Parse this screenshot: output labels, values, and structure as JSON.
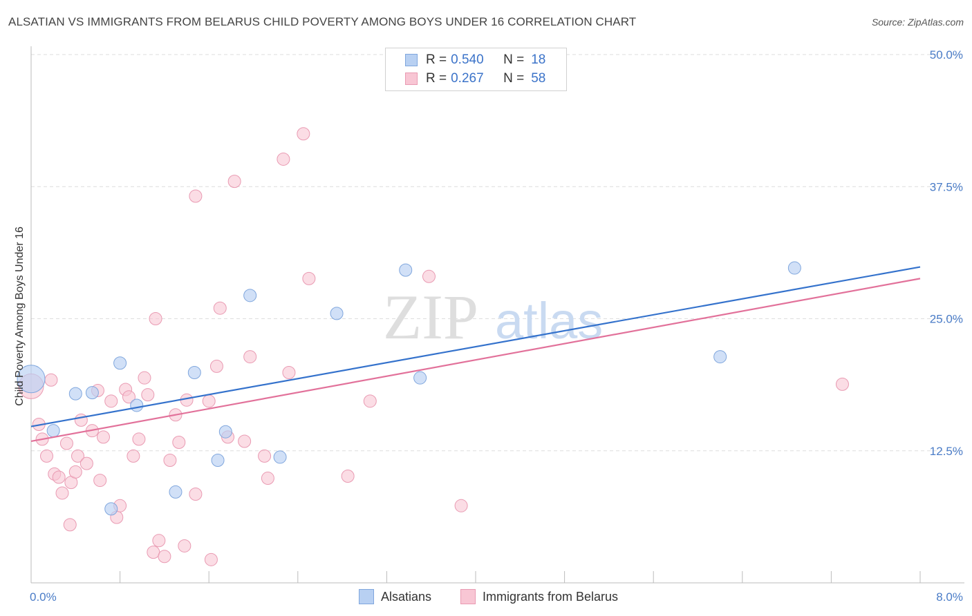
{
  "title": "ALSATIAN VS IMMIGRANTS FROM BELARUS CHILD POVERTY AMONG BOYS UNDER 16 CORRELATION CHART",
  "source": "Source: ZipAtlas.com",
  "watermark": {
    "zip": "ZIP",
    "atlas": "atlas"
  },
  "legend": {
    "rows": [
      {
        "r_label": "R =",
        "r_value": "0.540",
        "n_label": "N =",
        "n_value": "18"
      },
      {
        "r_label": "R =",
        "r_value": "0.267",
        "n_label": "N =",
        "n_value": "58"
      }
    ]
  },
  "bottom_legend": {
    "series1": "Alsatians",
    "series2": "Immigrants from Belarus"
  },
  "colors": {
    "blue_fill": "#b8d0f2",
    "blue_stroke": "#7fa6dd",
    "blue_line": "#3472cc",
    "pink_fill": "#f8c6d4",
    "pink_stroke": "#e99ab2",
    "pink_line": "#e2719a",
    "grid": "#dddddd",
    "tick_text": "#4a7cc7"
  },
  "chart_data": {
    "type": "scatter",
    "title": "ALSATIAN VS IMMIGRANTS FROM BELARUS CHILD POVERTY AMONG BOYS UNDER 16 CORRELATION CHART",
    "xlabel": "",
    "ylabel": "Child Poverty Among Boys Under 16",
    "xlim": [
      0,
      8
    ],
    "ylim": [
      0,
      50
    ],
    "x_tick_labels": [
      "0.0%",
      "8.0%"
    ],
    "y_ticks": [
      12.5,
      25.0,
      37.5,
      50.0
    ],
    "y_tick_labels": [
      "12.5%",
      "25.0%",
      "37.5%",
      "50.0%"
    ],
    "grid": true,
    "legend_position": "top-center",
    "series": [
      {
        "name": "Alsatians",
        "r": 0.54,
        "n": 18,
        "points": [
          [
            0.0,
            19.3,
            "big"
          ],
          [
            0.2,
            14.4
          ],
          [
            0.4,
            17.9
          ],
          [
            0.55,
            18.0
          ],
          [
            0.8,
            20.8
          ],
          [
            0.95,
            16.8
          ],
          [
            0.72,
            7.0
          ],
          [
            1.3,
            8.6
          ],
          [
            1.47,
            19.9
          ],
          [
            1.68,
            11.6
          ],
          [
            1.75,
            14.3
          ],
          [
            1.97,
            27.2
          ],
          [
            2.24,
            11.9
          ],
          [
            2.75,
            25.5
          ],
          [
            3.37,
            29.6
          ],
          [
            3.5,
            19.4
          ],
          [
            6.2,
            21.4
          ],
          [
            6.87,
            29.8
          ]
        ],
        "trend": [
          [
            0,
            14.8
          ],
          [
            8,
            29.9
          ]
        ]
      },
      {
        "name": "Immigrants from Belarus",
        "r": 0.267,
        "n": 58,
        "points": [
          [
            0.0,
            18.6,
            "big"
          ],
          [
            0.07,
            15.0
          ],
          [
            0.1,
            13.6
          ],
          [
            0.14,
            12.0
          ],
          [
            0.18,
            19.2
          ],
          [
            0.21,
            10.3
          ],
          [
            0.25,
            10.0
          ],
          [
            0.28,
            8.5
          ],
          [
            0.32,
            13.2
          ],
          [
            0.36,
            9.5
          ],
          [
            0.4,
            10.5
          ],
          [
            0.42,
            12.0
          ],
          [
            0.45,
            15.4
          ],
          [
            0.5,
            11.3
          ],
          [
            0.55,
            14.4
          ],
          [
            0.6,
            18.2
          ],
          [
            0.62,
            9.7
          ],
          [
            0.65,
            13.8
          ],
          [
            0.72,
            17.2
          ],
          [
            0.77,
            6.2
          ],
          [
            0.8,
            7.3
          ],
          [
            0.85,
            18.3
          ],
          [
            0.88,
            17.6
          ],
          [
            0.92,
            12.0
          ],
          [
            0.97,
            13.6
          ],
          [
            1.02,
            19.4
          ],
          [
            1.05,
            17.8
          ],
          [
            1.12,
            25.0
          ],
          [
            1.1,
            2.9
          ],
          [
            1.2,
            2.5
          ],
          [
            1.25,
            11.6
          ],
          [
            1.3,
            15.9
          ],
          [
            1.33,
            13.3
          ],
          [
            1.38,
            3.5
          ],
          [
            1.4,
            17.3
          ],
          [
            1.48,
            36.6
          ],
          [
            1.48,
            8.4
          ],
          [
            1.6,
            17.2
          ],
          [
            1.62,
            2.2
          ],
          [
            1.67,
            20.5
          ],
          [
            1.7,
            26.0
          ],
          [
            1.77,
            13.8
          ],
          [
            1.83,
            38.0
          ],
          [
            1.92,
            13.4
          ],
          [
            1.97,
            21.4
          ],
          [
            2.1,
            12.0
          ],
          [
            2.13,
            9.9
          ],
          [
            2.27,
            40.1
          ],
          [
            2.32,
            19.9
          ],
          [
            2.45,
            42.5
          ],
          [
            2.5,
            28.8
          ],
          [
            2.85,
            10.1
          ],
          [
            3.05,
            17.2
          ],
          [
            3.58,
            29.0
          ],
          [
            3.87,
            7.3
          ],
          [
            7.3,
            18.8
          ],
          [
            0.35,
            5.5
          ],
          [
            1.15,
            4.0
          ]
        ],
        "trend": [
          [
            0,
            13.4
          ],
          [
            8,
            28.8
          ]
        ]
      }
    ]
  }
}
